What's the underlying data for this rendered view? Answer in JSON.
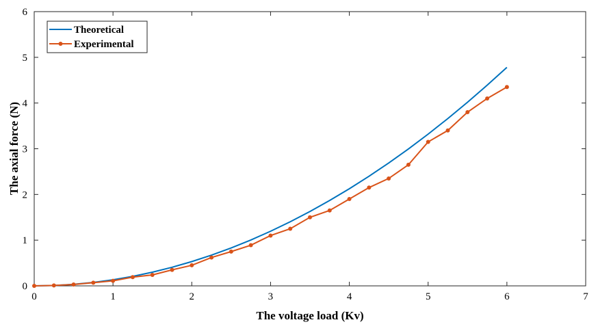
{
  "chart_data": {
    "type": "line",
    "title": "",
    "xlabel": "The voltage load  (Kv)",
    "ylabel": "The axial force   (N)",
    "xlim": [
      0,
      7
    ],
    "ylim": [
      0,
      6
    ],
    "xticks": [
      "0",
      "1",
      "2",
      "3",
      "4",
      "5",
      "6",
      "7"
    ],
    "yticks": [
      "0",
      "1",
      "2",
      "3",
      "4",
      "5",
      "6"
    ],
    "grid": false,
    "legend_position": "top-left",
    "x": [
      0,
      0.25,
      0.5,
      0.75,
      1,
      1.25,
      1.5,
      1.75,
      2,
      2.25,
      2.5,
      2.75,
      3,
      3.25,
      3.5,
      3.75,
      4,
      4.25,
      4.5,
      4.75,
      5,
      5.25,
      5.5,
      5.75,
      6
    ],
    "series": [
      {
        "name": "Theoretical",
        "color": "#0072BD",
        "marker": "none",
        "values": [
          0,
          0.008,
          0.033,
          0.075,
          0.133,
          0.208,
          0.299,
          0.407,
          0.531,
          0.672,
          0.83,
          1.004,
          1.195,
          1.403,
          1.627,
          1.868,
          2.125,
          2.399,
          2.689,
          2.996,
          3.32,
          3.66,
          4.017,
          4.391,
          4.781
        ]
      },
      {
        "name": "Experimental",
        "color": "#D95319",
        "marker": "dot",
        "values": [
          0,
          0.01,
          0.03,
          0.07,
          0.11,
          0.19,
          0.24,
          0.35,
          0.45,
          0.62,
          0.75,
          0.89,
          1.1,
          1.25,
          1.5,
          1.65,
          1.9,
          2.15,
          2.35,
          2.65,
          3.15,
          3.4,
          3.8,
          4.1,
          4.35
        ]
      }
    ]
  }
}
